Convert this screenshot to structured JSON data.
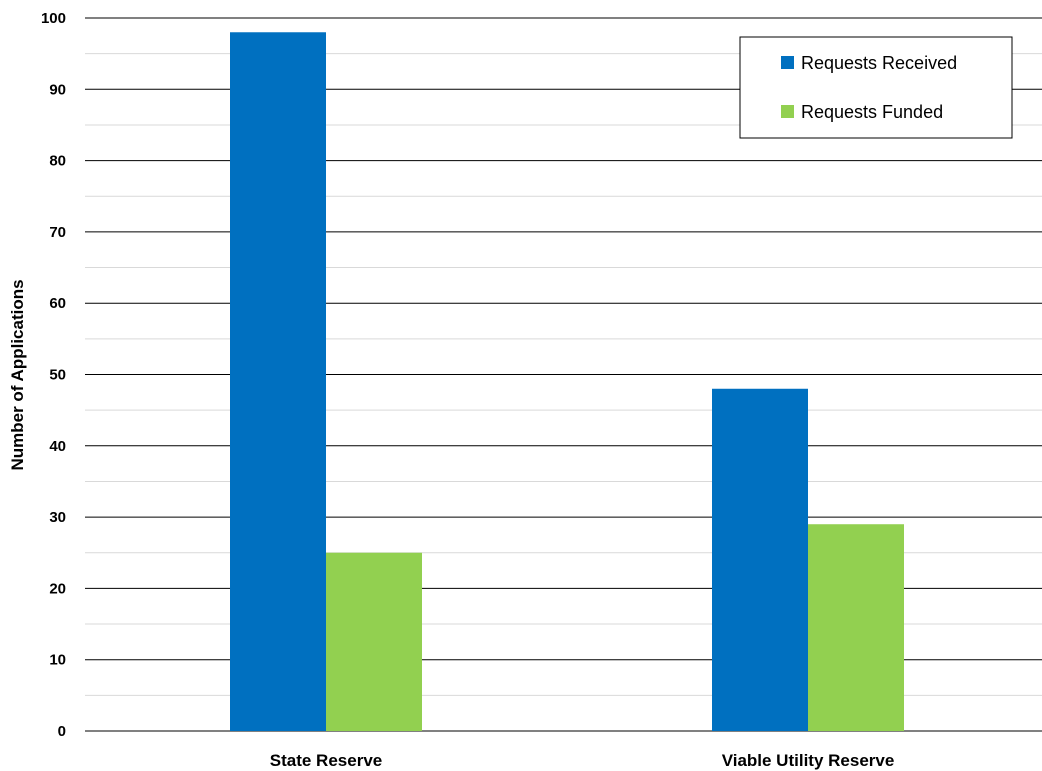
{
  "chart_data": {
    "type": "bar",
    "title": "",
    "xlabel": "",
    "ylabel": "Number of Applications",
    "categories": [
      "State Reserve",
      "Viable Utility Reserve"
    ],
    "series": [
      {
        "name": "Requests Received",
        "values": [
          98,
          48
        ],
        "color": "#0070C0"
      },
      {
        "name": "Requests Funded",
        "values": [
          25,
          29
        ],
        "color": "#92D050"
      }
    ],
    "ylim": [
      0,
      100
    ],
    "yticks": [
      0,
      10,
      20,
      30,
      40,
      50,
      60,
      70,
      80,
      90,
      100
    ],
    "major_grid_color": "#000000",
    "minor_grid_color": "#D9D9D9",
    "grid": true,
    "legend_position": "top-right"
  }
}
